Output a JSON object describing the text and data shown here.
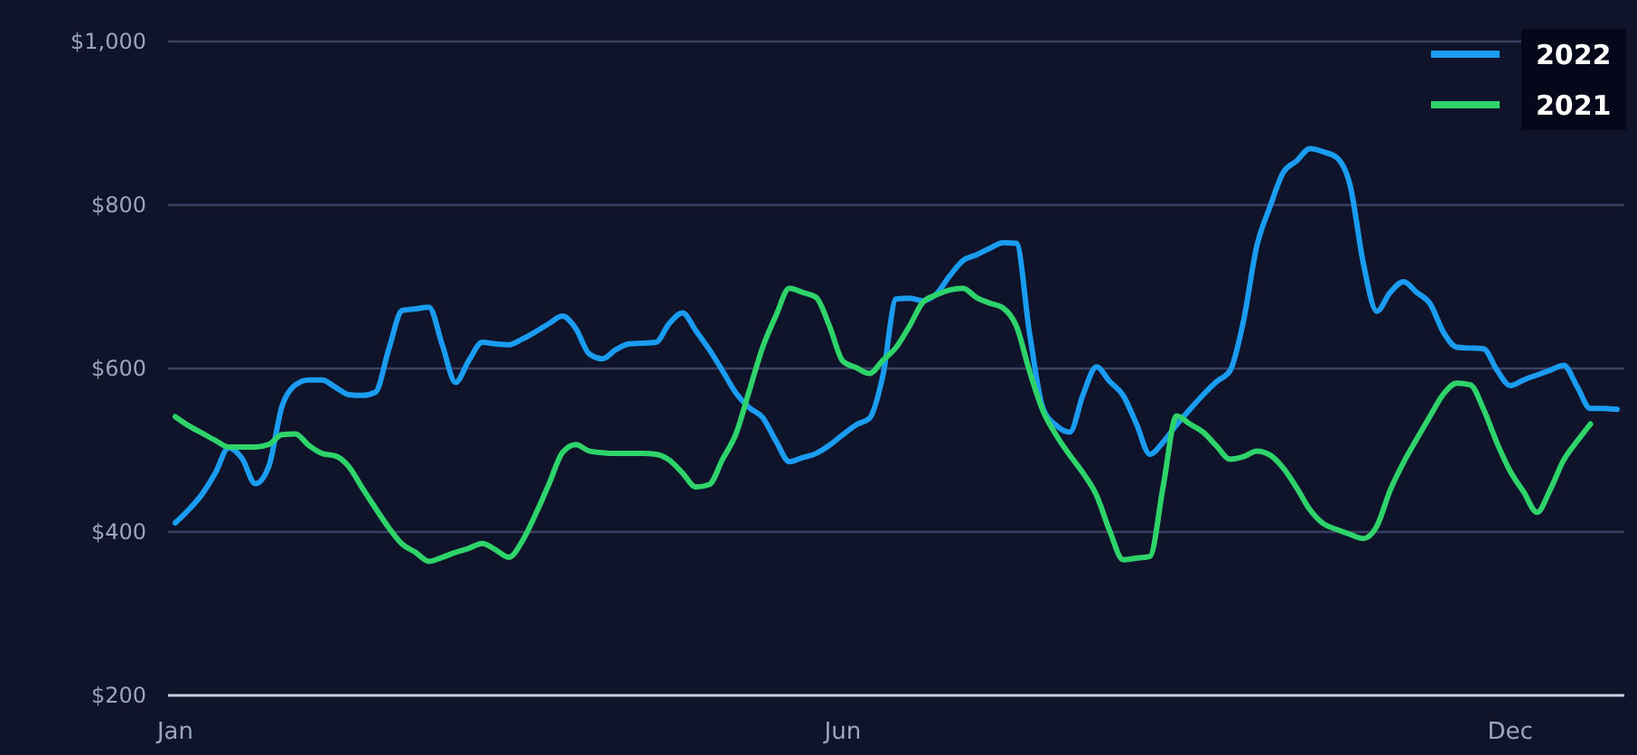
{
  "chart_data": {
    "type": "line",
    "legend": "top right",
    "grid": "y",
    "ylim": [
      200,
      1000
    ],
    "yticks": [
      {
        "value": 200,
        "label": "$200"
      },
      {
        "value": 400,
        "label": "$400"
      },
      {
        "value": 600,
        "label": "$600"
      },
      {
        "value": 800,
        "label": "$800"
      },
      {
        "value": 1000,
        "label": "$1,000"
      }
    ],
    "marker": "none",
    "line_style": "solid",
    "categories": [
      "Jan",
      null,
      null,
      null,
      null,
      null,
      null,
      null,
      null,
      null,
      null,
      null,
      null,
      null,
      null,
      null,
      null,
      null,
      null,
      null,
      null,
      null,
      null,
      null,
      null,
      null,
      null,
      null,
      null,
      null,
      null,
      null,
      null,
      null,
      null,
      null,
      null,
      null,
      null,
      null,
      null,
      null,
      null,
      null,
      null,
      null,
      null,
      null,
      null,
      null,
      "Jun",
      null,
      null,
      null,
      null,
      null,
      null,
      null,
      null,
      null,
      null,
      null,
      null,
      null,
      null,
      null,
      null,
      null,
      null,
      null,
      null,
      null,
      null,
      null,
      null,
      null,
      null,
      null,
      null,
      null,
      null,
      null,
      null,
      null,
      null,
      null,
      null,
      null,
      null,
      null,
      null,
      null,
      null,
      null,
      null,
      null,
      null,
      null,
      null,
      null,
      "Dec",
      null,
      null,
      null,
      null,
      null,
      null,
      null,
      null
    ],
    "series": [
      {
        "name": "2022",
        "color": "#1a9cf0",
        "values": [
          411,
          427,
          446,
          472,
          503,
          490,
          459,
          480,
          554,
          580,
          586,
          586,
          577,
          568,
          567,
          571,
          624,
          671,
          673,
          675,
          629,
          583,
          610,
          632,
          630,
          629,
          636,
          645,
          655,
          664,
          649,
          618,
          612,
          623,
          630,
          631,
          632,
          655,
          668,
          646,
          623,
          597,
          570,
          552,
          540,
          511,
          486,
          491,
          496,
          506,
          519,
          531,
          539,
          591,
          685,
          686,
          683,
          691,
          713,
          732,
          739,
          747,
          754,
          753,
          642,
          551,
          530,
          522,
          568,
          602,
          584,
          567,
          532,
          495,
          510,
          531,
          550,
          568,
          584,
          597,
          657,
          749,
          798,
          840,
          854,
          869,
          865,
          858,
          824,
          728,
          670,
          693,
          706,
          693,
          679,
          644,
          626,
          625,
          624,
          598,
          579,
          586,
          592,
          598,
          604,
          578,
          551,
          551,
          550
        ]
      },
      {
        "name": "2021",
        "color": "#2ed36a",
        "values": [
          541,
          530,
          521,
          512,
          504,
          504,
          504,
          507,
          519,
          520,
          506,
          496,
          493,
          480,
          454,
          429,
          405,
          385,
          375,
          364,
          369,
          375,
          380,
          386,
          378,
          369,
          389,
          422,
          459,
          497,
          507,
          499,
          497,
          496,
          496,
          496,
          495,
          488,
          472,
          455,
          458,
          489,
          520,
          573,
          626,
          665,
          698,
          693,
          687,
          652,
          609,
          601,
          594,
          610,
          626,
          652,
          681,
          690,
          696,
          698,
          687,
          680,
          674,
          652,
          596,
          548,
          518,
          494,
          472,
          445,
          401,
          366,
          368,
          370,
          456,
          542,
          532,
          522,
          505,
          489,
          492,
          499,
          494,
          478,
          454,
          427,
          410,
          403,
          397,
          392,
          407,
          451,
          485,
          514,
          542,
          569,
          582,
          580,
          550,
          509,
          474,
          449,
          424,
          452,
          488,
          511,
          532,
          null,
          null
        ]
      }
    ]
  }
}
